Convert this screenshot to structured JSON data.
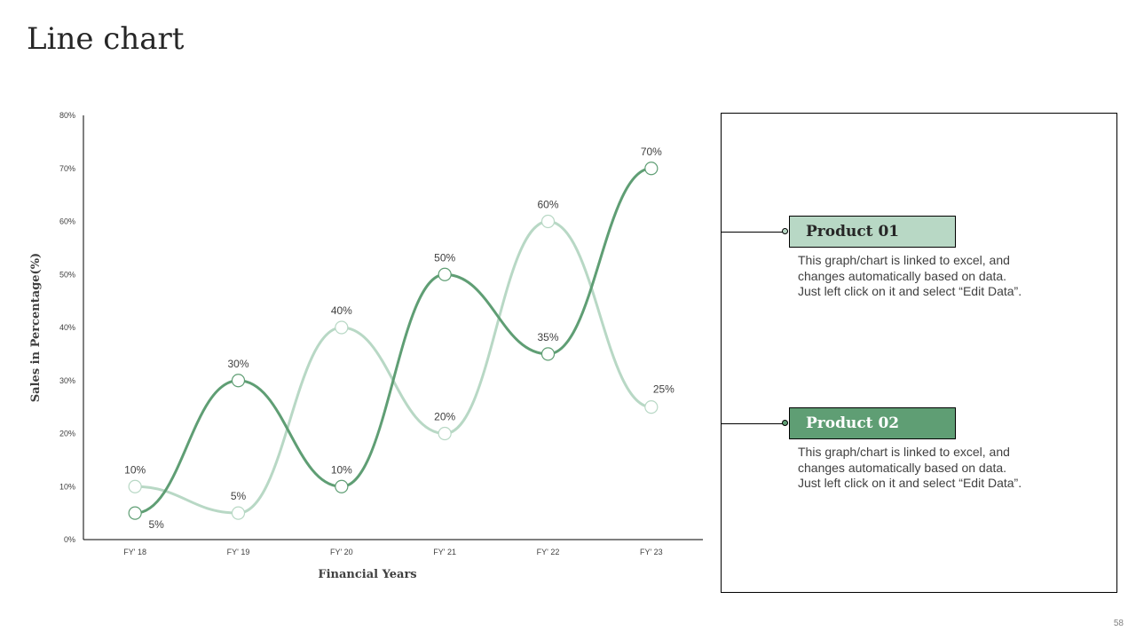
{
  "page": {
    "title": "Line chart",
    "page_number": "58"
  },
  "colors": {
    "product_01": "#b8d8c5",
    "product_02": "#5f9e74"
  },
  "legend": {
    "items": [
      {
        "label": "Product 01",
        "description": [
          "This graph/chart is linked to excel, and",
          "changes automatically based on data.",
          "Just left click on it and select “Edit Data”."
        ]
      },
      {
        "label": "Product 02",
        "description": [
          "This graph/chart is linked to excel, and",
          "changes automatically based on data.",
          "Just left click on it and select “Edit Data”."
        ]
      }
    ]
  },
  "chart_data": {
    "type": "line",
    "title": "",
    "xlabel": "Financial Years",
    "ylabel": "Sales in Percentage(%)",
    "categories": [
      "FY' 18",
      "FY' 19",
      "FY' 20",
      "FY' 21",
      "FY' 22",
      "FY' 23"
    ],
    "y_ticks": [
      "0%",
      "10%",
      "20%",
      "30%",
      "40%",
      "50%",
      "60%",
      "70%",
      "80%"
    ],
    "ylim": [
      0,
      80
    ],
    "grid": false,
    "smooth": true,
    "series": [
      {
        "name": "Product 01",
        "values": [
          10,
          5,
          40,
          20,
          60,
          25
        ],
        "labels": [
          "10%",
          "5%",
          "40%",
          "20%",
          "60%",
          "25%"
        ]
      },
      {
        "name": "Product 02",
        "values": [
          5,
          30,
          10,
          50,
          35,
          70
        ],
        "labels": [
          "5%",
          "30%",
          "10%",
          "50%",
          "35%",
          "70%"
        ]
      }
    ]
  }
}
